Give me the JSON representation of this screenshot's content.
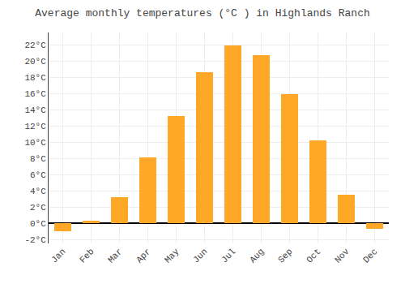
{
  "chart_data": {
    "type": "bar",
    "title": "Average monthly temperatures (°C ) in Highlands Ranch",
    "categories": [
      "Jan",
      "Feb",
      "Mar",
      "Apr",
      "May",
      "Jun",
      "Jul",
      "Aug",
      "Sep",
      "Oct",
      "Nov",
      "Dec"
    ],
    "values": [
      -1.0,
      0.3,
      3.2,
      8.1,
      13.2,
      18.6,
      21.9,
      20.7,
      15.9,
      10.2,
      3.5,
      -0.7
    ],
    "color": "#FFA726",
    "ylim": [
      -2.5,
      23.5
    ],
    "yticks": [
      {
        "value": -2,
        "label": "-2°C"
      },
      {
        "value": 0,
        "label": "0°C"
      },
      {
        "value": 2,
        "label": "2°C"
      },
      {
        "value": 4,
        "label": "4°C"
      },
      {
        "value": 6,
        "label": "6°C"
      },
      {
        "value": 8,
        "label": "8°C"
      },
      {
        "value": 10,
        "label": "10°C"
      },
      {
        "value": 12,
        "label": "12°C"
      },
      {
        "value": 14,
        "label": "14°C"
      },
      {
        "value": 16,
        "label": "16°C"
      },
      {
        "value": 18,
        "label": "18°C"
      },
      {
        "value": 20,
        "label": "20°C"
      },
      {
        "value": 22,
        "label": "22°C"
      }
    ],
    "grid": true
  }
}
